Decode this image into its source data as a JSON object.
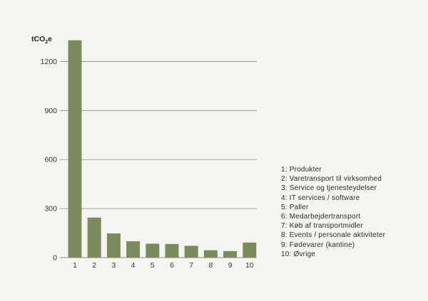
{
  "chart_data": {
    "type": "bar",
    "unit_label": {
      "main": "tCO",
      "sub": "2",
      "tail": "e"
    },
    "categories": [
      "1",
      "2",
      "3",
      "4",
      "5",
      "6",
      "7",
      "8",
      "9",
      "10"
    ],
    "values": [
      1330,
      245,
      148,
      100,
      85,
      83,
      72,
      45,
      40,
      92
    ],
    "ylim": [
      0,
      1350
    ],
    "yticks": [
      0,
      300,
      600,
      900,
      1200
    ],
    "grid": true,
    "bar_color": "#7b8b5b",
    "legend_position": "right",
    "legend": [
      "1: Produkter",
      "2: Varetransport til virksomhed",
      "3: Service og tjenesteydelser",
      "4: IT services / software",
      "5: Paller",
      "6: Medarbejdertransport",
      "7: Køb af transportmidler",
      "8: Events / personale aktiviteter",
      "9: Fødevarer (kantine)",
      "10: Øvrige"
    ]
  },
  "colors": {
    "background": "#f4f5f0",
    "grid": "#8a8a8a",
    "bar": "#7b8b5b"
  }
}
